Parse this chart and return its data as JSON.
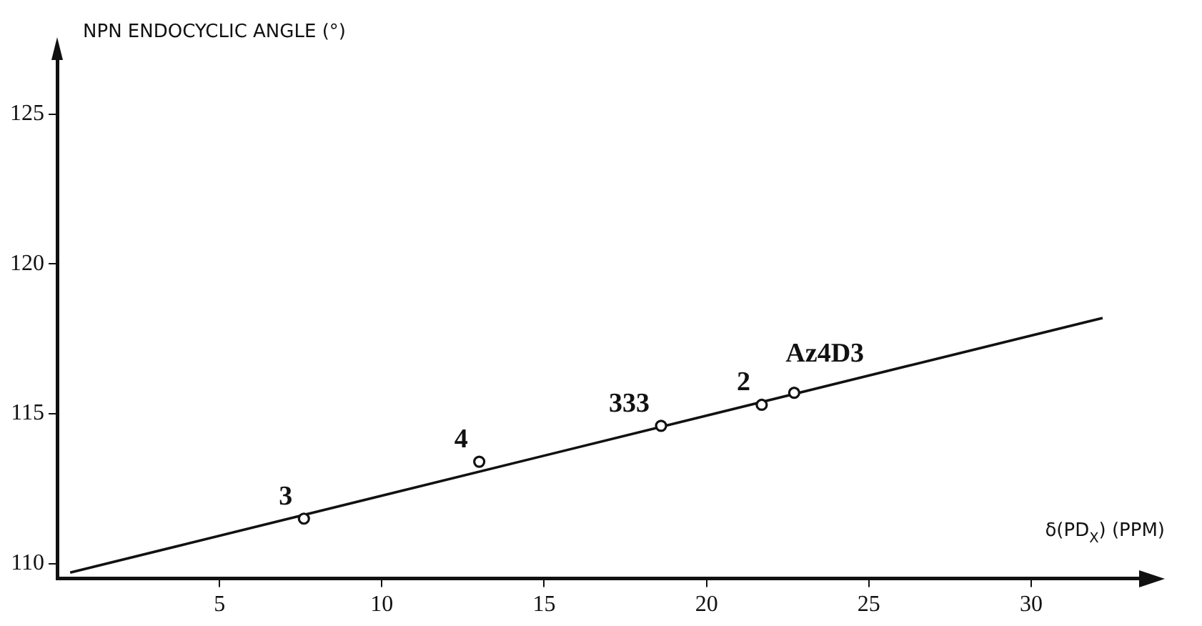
{
  "chart_data": {
    "type": "scatter",
    "xlabel": "δ(PD$_{X}$) (PPM)",
    "ylabel": "NPN ENDOCYCLIC ANGLE (°)",
    "xlim": [
      0,
      33.5
    ],
    "ylim": [
      109.5,
      127
    ],
    "xticks": [
      5,
      10,
      15,
      20,
      25,
      30
    ],
    "yticks": [
      110,
      115,
      120,
      125
    ],
    "grid": false,
    "legend": false,
    "marker": "circle",
    "series": [
      {
        "type": "scatter",
        "color": "#111111",
        "x": [
          7.6,
          13.0,
          18.6,
          21.7,
          22.7
        ],
        "values": [
          111.5,
          113.4,
          114.6,
          115.3,
          115.7
        ]
      },
      {
        "type": "line",
        "color": "#111111",
        "line_style": "solid",
        "marker": "none",
        "x": [
          0.4,
          32.2
        ],
        "values": [
          109.7,
          118.2
        ]
      }
    ],
    "annotations": [
      {
        "text": "3",
        "x": 7.6,
        "y": 111.5
      },
      {
        "text": "4",
        "x": 13.0,
        "y": 113.4
      },
      {
        "text": "333",
        "x": 18.6,
        "y": 114.6
      },
      {
        "text": "2",
        "x": 21.7,
        "y": 115.3
      },
      {
        "text": "Az4D3",
        "x": 22.7,
        "y": 115.7
      }
    ]
  }
}
